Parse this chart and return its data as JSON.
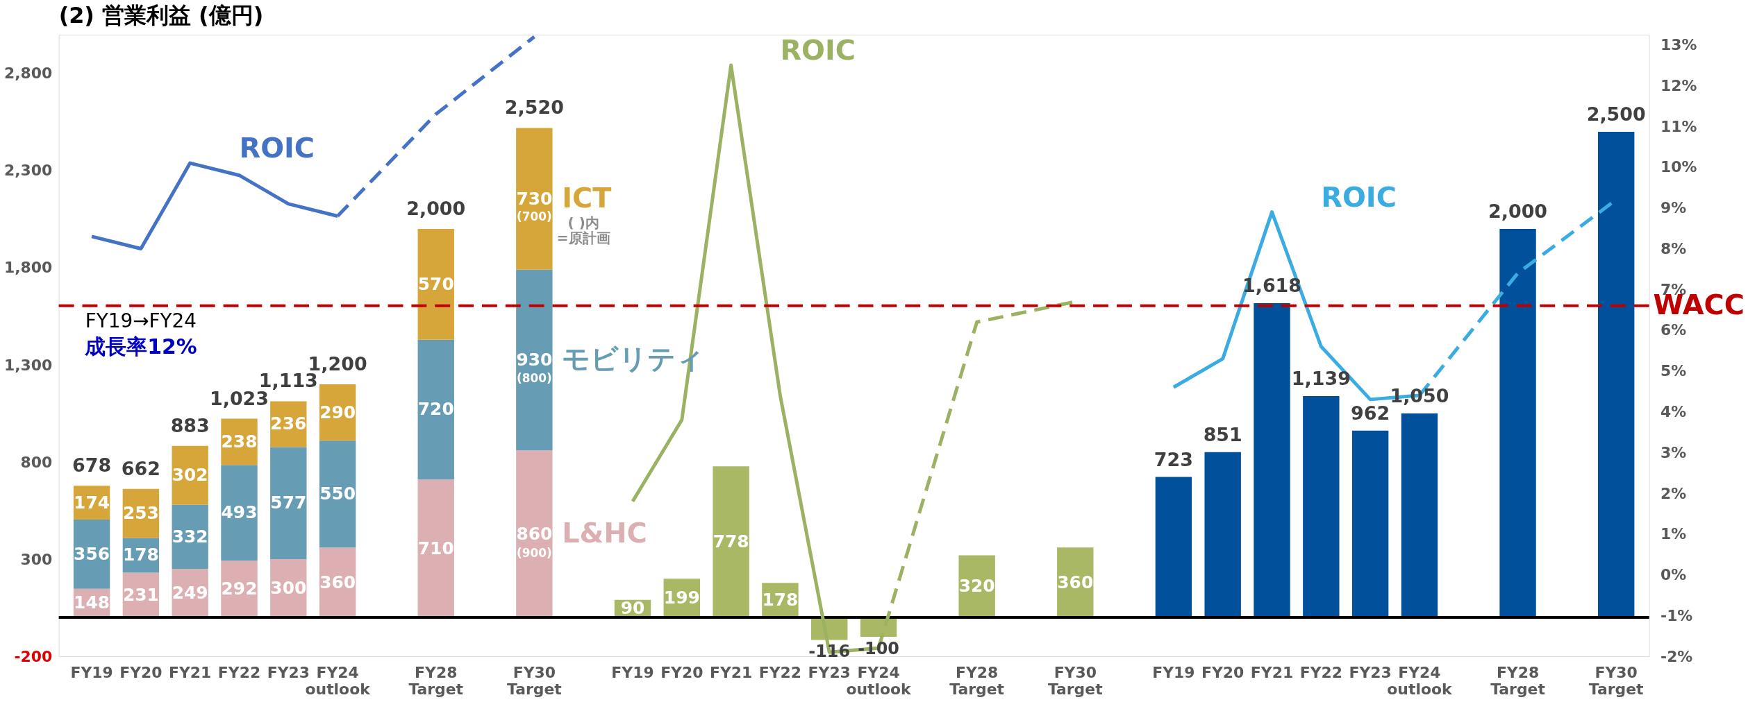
{
  "chart_data": {
    "type": "bar",
    "title": "(2) 営業利益 (億円)",
    "categories": [
      "FY19",
      "FY20",
      "FY21",
      "FY22",
      "FY23",
      "FY24 outlook",
      null,
      "FY28 Target",
      null,
      "FY30 Target",
      null,
      "FY19",
      "FY20",
      "FY21",
      "FY22",
      "FY23",
      "FY24 outlook",
      null,
      "FY28 Target",
      null,
      "FY30 Target",
      null,
      "FY19",
      "FY20",
      "FY21",
      "FY22",
      "FY23",
      "FY24 outlook",
      null,
      "FY28 Target",
      null,
      "FY30 Target"
    ],
    "stacked": true,
    "series": [
      {
        "name": "L&HC",
        "color": "#dcb0b2",
        "values": [
          148,
          231,
          249,
          292,
          300,
          360,
          null,
          710,
          null,
          860,
          null,
          null,
          null,
          null,
          null,
          null,
          null,
          null,
          null,
          null,
          null,
          null,
          null,
          null,
          null,
          null,
          null,
          null,
          null,
          null,
          null,
          null
        ],
        "value_labels": [
          "148",
          "231",
          "249",
          "292",
          "300",
          "360",
          null,
          "710",
          null,
          "860",
          null,
          null,
          null,
          null,
          null,
          null,
          null,
          null,
          null,
          null,
          null,
          null,
          null,
          null,
          null,
          null,
          null,
          null,
          null,
          null,
          null,
          null
        ]
      },
      {
        "name": "モビリティ",
        "color": "#679db4",
        "values": [
          356,
          178,
          332,
          493,
          577,
          550,
          null,
          720,
          null,
          930,
          null,
          null,
          null,
          null,
          null,
          null,
          null,
          null,
          null,
          null,
          null,
          null,
          null,
          null,
          null,
          null,
          null,
          null,
          null,
          null,
          null,
          null
        ],
        "value_labels": [
          "356",
          "178",
          "332",
          "493",
          "577",
          "550",
          null,
          "720",
          null,
          "930",
          null,
          null,
          null,
          null,
          null,
          null,
          null,
          null,
          null,
          null,
          null,
          null,
          null,
          null,
          null,
          null,
          null,
          null,
          null,
          null,
          null,
          null
        ]
      },
      {
        "name": "ICT",
        "color": "#d6a63b",
        "values": [
          174,
          253,
          302,
          238,
          236,
          290,
          null,
          570,
          null,
          730,
          null,
          null,
          null,
          null,
          null,
          null,
          null,
          null,
          null,
          null,
          null,
          null,
          null,
          null,
          null,
          null,
          null,
          null,
          null,
          null,
          null,
          null
        ],
        "value_labels": [
          "174",
          "253",
          "302",
          "238",
          "236",
          "290",
          null,
          "570",
          null,
          "730",
          null,
          null,
          null,
          null,
          null,
          null,
          null,
          null,
          null,
          null,
          null,
          null,
          null,
          null,
          null,
          null,
          null,
          null,
          null,
          null,
          null,
          null
        ]
      },
      {
        "color": "#a9b864",
        "values": [
          null,
          null,
          null,
          null,
          null,
          null,
          null,
          null,
          null,
          null,
          null,
          90,
          199,
          778,
          178,
          -116,
          -100,
          null,
          320,
          null,
          360,
          null,
          null,
          null,
          null,
          null,
          null,
          null,
          null,
          null,
          null,
          null
        ],
        "value_labels": [
          null,
          null,
          null,
          null,
          null,
          null,
          null,
          null,
          null,
          null,
          null,
          "90",
          "199",
          "778",
          "178",
          "-116",
          "-100",
          null,
          "320",
          null,
          "360",
          null,
          null,
          null,
          null,
          null,
          null,
          null,
          null,
          null,
          null,
          null
        ]
      },
      {
        "color": "#00509b",
        "values": [
          null,
          null,
          null,
          null,
          null,
          null,
          null,
          null,
          null,
          null,
          null,
          null,
          null,
          null,
          null,
          null,
          null,
          null,
          null,
          null,
          null,
          null,
          723,
          851,
          1618,
          1139,
          962,
          1050,
          null,
          2000,
          null,
          2500
        ],
        "value_labels": [
          null,
          null,
          null,
          null,
          null,
          null,
          null,
          null,
          null,
          null,
          null,
          null,
          null,
          null,
          null,
          null,
          null,
          null,
          null,
          null,
          null,
          null,
          "723",
          "851",
          "1,618",
          "1,139",
          "962",
          "1,050",
          null,
          "2,000",
          null,
          "2,500"
        ]
      },
      {
        "name": "ROIC",
        "type": "line",
        "axis": "y2",
        "line_style": "solid",
        "color": "#4472c4",
        "values": [
          8.3,
          8.0,
          10.1,
          9.8,
          9.1,
          8.8,
          null,
          null,
          null,
          null,
          null,
          null,
          null,
          null,
          null,
          null,
          null,
          null,
          null,
          null,
          null,
          null,
          null,
          null,
          null,
          null,
          null,
          null,
          null,
          null,
          null,
          null
        ]
      },
      {
        "type": "line",
        "axis": "y2",
        "line_style": "dashed",
        "color": "#4472c4",
        "values": [
          null,
          null,
          null,
          null,
          null,
          8.8,
          null,
          11.3,
          null,
          13.2,
          null,
          null,
          null,
          null,
          null,
          null,
          null,
          null,
          null,
          null,
          null,
          null,
          null,
          null,
          null,
          null,
          null,
          null,
          null,
          null,
          null,
          null
        ]
      },
      {
        "name": "ROIC",
        "type": "line",
        "axis": "y2",
        "line_style": "solid",
        "color": "#9bb262",
        "values": [
          null,
          null,
          null,
          null,
          null,
          null,
          null,
          null,
          null,
          null,
          null,
          1.8,
          3.8,
          12.5,
          4.4,
          -1.9,
          -1.8,
          null,
          null,
          null,
          null,
          null,
          null,
          null,
          null,
          null,
          null,
          null,
          null,
          null,
          null,
          null
        ]
      },
      {
        "type": "line",
        "axis": "y2",
        "line_style": "dashed",
        "color": "#9bb262",
        "values": [
          null,
          null,
          null,
          null,
          null,
          null,
          null,
          null,
          null,
          null,
          null,
          null,
          null,
          null,
          null,
          null,
          -1.8,
          null,
          6.2,
          null,
          6.7,
          null,
          null,
          null,
          null,
          null,
          null,
          null,
          null,
          null,
          null,
          null
        ]
      },
      {
        "name": "ROIC",
        "type": "line",
        "axis": "y2",
        "line_style": "solid",
        "color": "#3aace2",
        "values": [
          null,
          null,
          null,
          null,
          null,
          null,
          null,
          null,
          null,
          null,
          null,
          null,
          null,
          null,
          null,
          null,
          null,
          null,
          null,
          null,
          null,
          null,
          4.6,
          5.3,
          8.9,
          5.6,
          4.3,
          4.4,
          null,
          null,
          null,
          null
        ]
      },
      {
        "type": "line",
        "axis": "y2",
        "line_style": "dashed",
        "color": "#3aace2",
        "values": [
          null,
          null,
          null,
          null,
          null,
          null,
          null,
          null,
          null,
          null,
          null,
          null,
          null,
          null,
          null,
          null,
          null,
          null,
          null,
          null,
          null,
          null,
          null,
          null,
          null,
          null,
          null,
          4.4,
          null,
          7.4,
          null,
          9.2
        ]
      }
    ],
    "totals": [
      "678",
      "662",
      "883",
      "1,023",
      "1,113",
      "1,200",
      null,
      "2,000",
      null,
      "2,520",
      null,
      null,
      null,
      null,
      null,
      null,
      null,
      null,
      null,
      null,
      null,
      null,
      null,
      null,
      null,
      null,
      null,
      null,
      null,
      null,
      null,
      null
    ],
    "ylim": [
      -200,
      3000
    ],
    "yticks": [
      -200,
      300,
      800,
      {
        "value": 1300,
        "label": "1,300"
      },
      {
        "value": 1800,
        "label": "1,800"
      },
      {
        "value": 2300,
        "label": "2,300"
      },
      {
        "value": 2800,
        "label": "2,800"
      }
    ],
    "y2lim": [
      -2,
      13.25
    ],
    "y2ticks": [
      {
        "value": -2,
        "label": "-2%"
      },
      {
        "value": -1,
        "label": "-1%"
      },
      {
        "value": 0,
        "label": "0%"
      },
      {
        "value": 1,
        "label": "1%"
      },
      {
        "value": 2,
        "label": "2%"
      },
      {
        "value": 3,
        "label": "3%"
      },
      {
        "value": 4,
        "label": "4%"
      },
      {
        "value": 5,
        "label": "5%"
      },
      {
        "value": 6,
        "label": "6%"
      },
      {
        "value": 7,
        "label": "7%"
      },
      {
        "value": 8,
        "label": "8%"
      },
      {
        "value": 9,
        "label": "9%"
      },
      {
        "value": 10,
        "label": "10%"
      },
      {
        "value": 11,
        "label": "11%"
      },
      {
        "value": 12,
        "label": "12%"
      },
      {
        "value": 13,
        "label": "13%"
      }
    ],
    "ref_lines": [
      {
        "axis": "y",
        "value": 0,
        "color": "#000000",
        "line_style": "solid"
      },
      {
        "axis": "y2",
        "value": 6.6,
        "label": "WACC",
        "color": "#c00000",
        "line_style": "dashed"
      }
    ],
    "annotations": [
      "FY19→FY24",
      "成長率12%",
      "( )内",
      "=原計画",
      "(900)",
      "(800)",
      "(700)"
    ],
    "legend": false,
    "grid": false
  }
}
